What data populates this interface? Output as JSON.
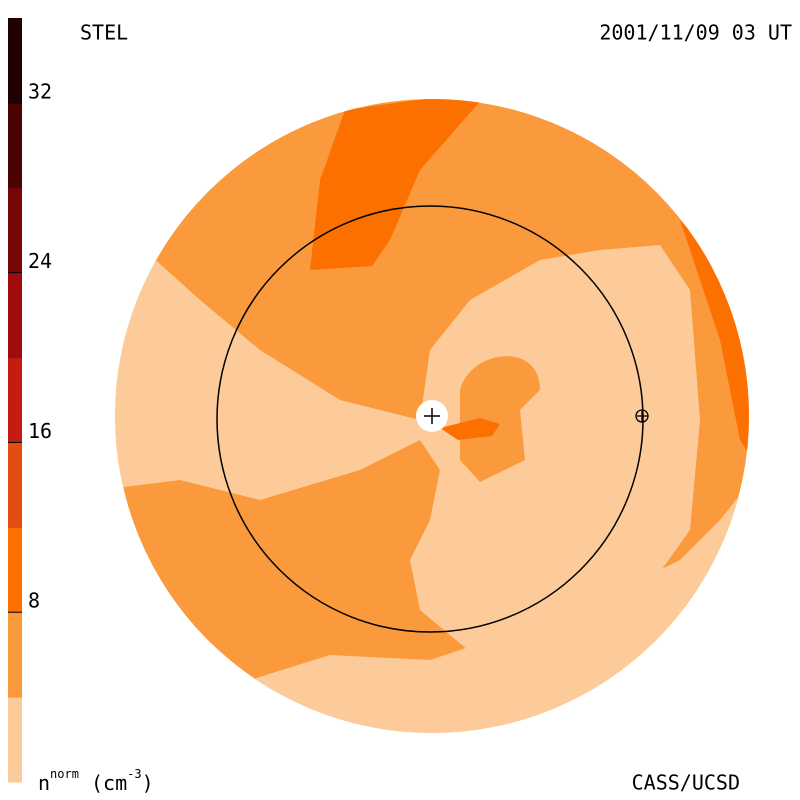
{
  "header": {
    "left": "STEL",
    "right": "2001/11/09 03 UT"
  },
  "footer": {
    "left": {
      "base": "n",
      "sup": "norm",
      "unit_open": " (cm",
      "unit_sup": "-3",
      "unit_close": ")"
    },
    "right": "CASS/UCSD"
  },
  "colorbar": {
    "lim": [
      0,
      36
    ],
    "ticks": [
      8,
      16,
      24,
      32
    ],
    "colors": [
      "#fdcb9a",
      "#fb9a3c",
      "#fc7000",
      "#e44c10",
      "#c41c10",
      "#a00c0c",
      "#780606",
      "#4c0303",
      "#200000"
    ]
  }
}
